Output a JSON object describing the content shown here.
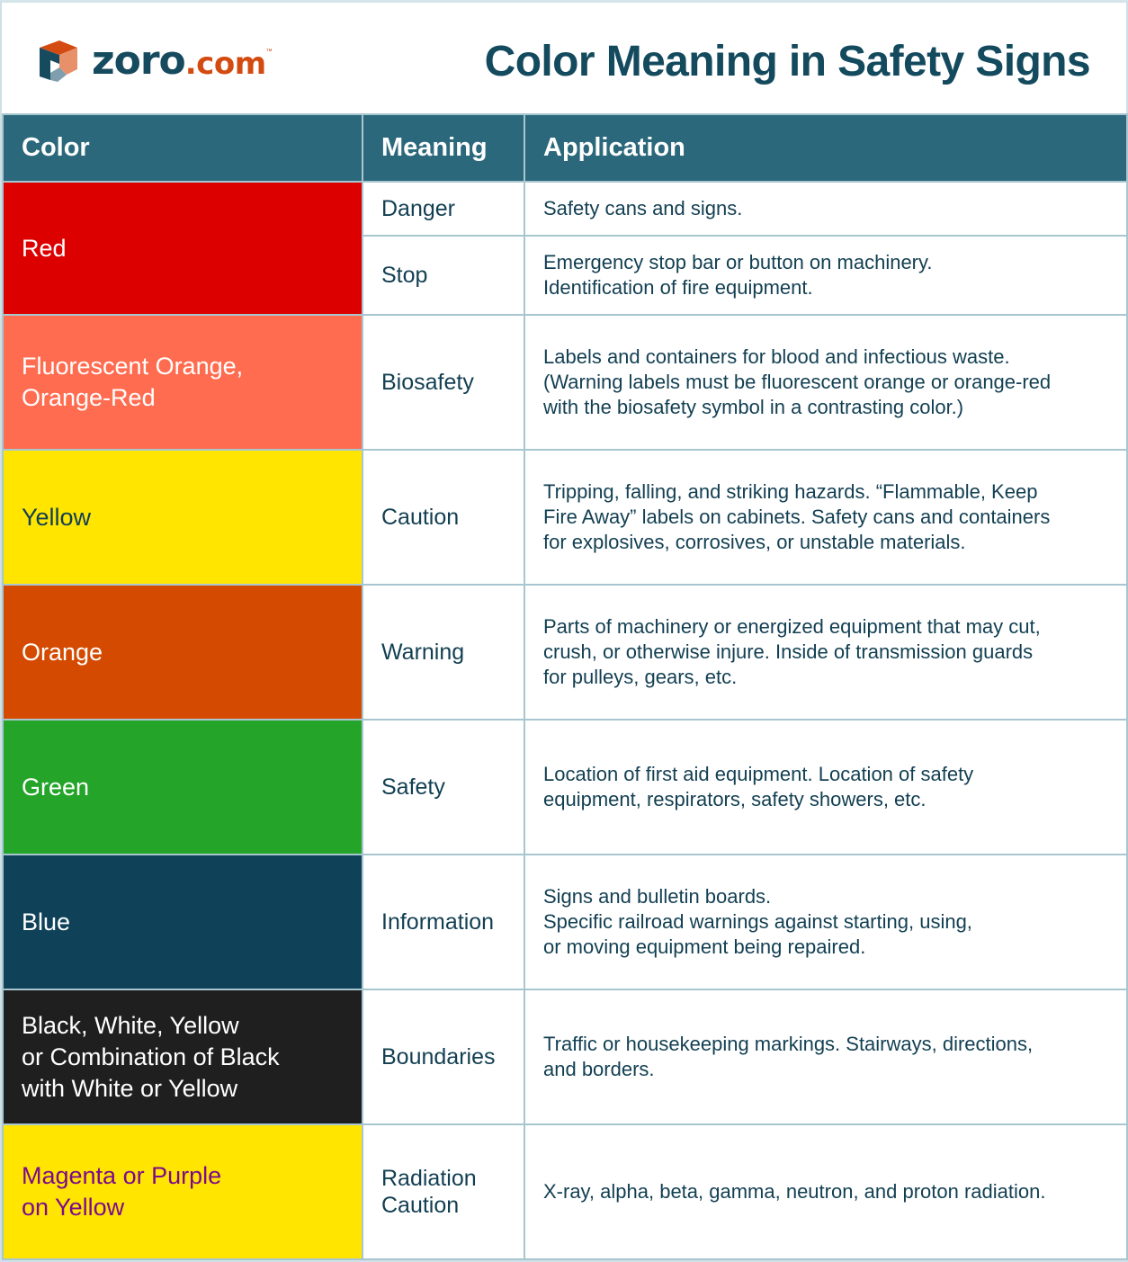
{
  "header": {
    "logo": {
      "name": "zoro",
      "suffix": ".com",
      "tm": "™",
      "brand_color": "#164a5e",
      "accent_color": "#d44b12"
    },
    "title": "Color Meaning in Safety Signs"
  },
  "table": {
    "columns": [
      "Color",
      "Meaning",
      "Application"
    ],
    "header_bg": "#2b687c",
    "rows": [
      {
        "color": "Red",
        "bg": "#dc0000",
        "fg": "#ffffff",
        "entries": [
          {
            "meaning": "Danger",
            "application": [
              "Safety cans and signs."
            ]
          },
          {
            "meaning": "Stop",
            "application": [
              "Emergency stop bar or button on machinery.",
              "Identification of fire equipment."
            ]
          }
        ]
      },
      {
        "color": [
          "Fluorescent Orange,",
          "Orange-Red"
        ],
        "bg": "#ff6c50",
        "fg": "#ffffff",
        "entries": [
          {
            "meaning": "Biosafety",
            "application": [
              "Labels and containers for blood and infectious waste.",
              "(Warning labels must be fluorescent orange or orange-red",
              "with the biosafety symbol in a contrasting color.)"
            ]
          }
        ]
      },
      {
        "color": "Yellow",
        "bg": "#ffe500",
        "fg": "#123f52",
        "entries": [
          {
            "meaning": "Caution",
            "application": [
              "Tripping, falling, and striking hazards. “Flammable, Keep",
              "Fire Away” labels on cabinets. Safety cans and containers",
              "for explosives, corrosives, or unstable materials."
            ]
          }
        ]
      },
      {
        "color": "Orange",
        "bg": "#d44a00",
        "fg": "#ffffff",
        "entries": [
          {
            "meaning": "Warning",
            "application": [
              "Parts of machinery or energized equipment that may cut,",
              "crush, or otherwise injure. Inside of transmission guards",
              "for pulleys, gears, etc."
            ]
          }
        ]
      },
      {
        "color": "Green",
        "bg": "#24a52a",
        "fg": "#ffffff",
        "entries": [
          {
            "meaning": "Safety",
            "application": [
              "Location of first aid equipment. Location of safety",
              "equipment, respirators, safety showers, etc."
            ]
          }
        ]
      },
      {
        "color": "Blue",
        "bg": "#0f4259",
        "fg": "#ffffff",
        "entries": [
          {
            "meaning": "Information",
            "application": [
              "Signs and bulletin boards.",
              "Specific railroad warnings against starting, using,",
              "or moving equipment being repaired."
            ]
          }
        ]
      },
      {
        "color": [
          "Black, White, Yellow",
          "or Combination of Black",
          "with White or Yellow"
        ],
        "bg": "#1f1f1f",
        "fg": "#ffffff",
        "entries": [
          {
            "meaning": "Boundaries",
            "application": [
              "Traffic or housekeeping markings. Stairways, directions,",
              "and borders."
            ]
          }
        ]
      },
      {
        "color": [
          "Magenta or Purple",
          "on Yellow"
        ],
        "bg": "#ffe500",
        "fg": "#7d0a8c",
        "entries": [
          {
            "meaning": [
              "Radiation",
              "Caution"
            ],
            "application": [
              "X-ray, alpha, beta, gamma, neutron, and proton radiation."
            ]
          }
        ]
      }
    ]
  }
}
